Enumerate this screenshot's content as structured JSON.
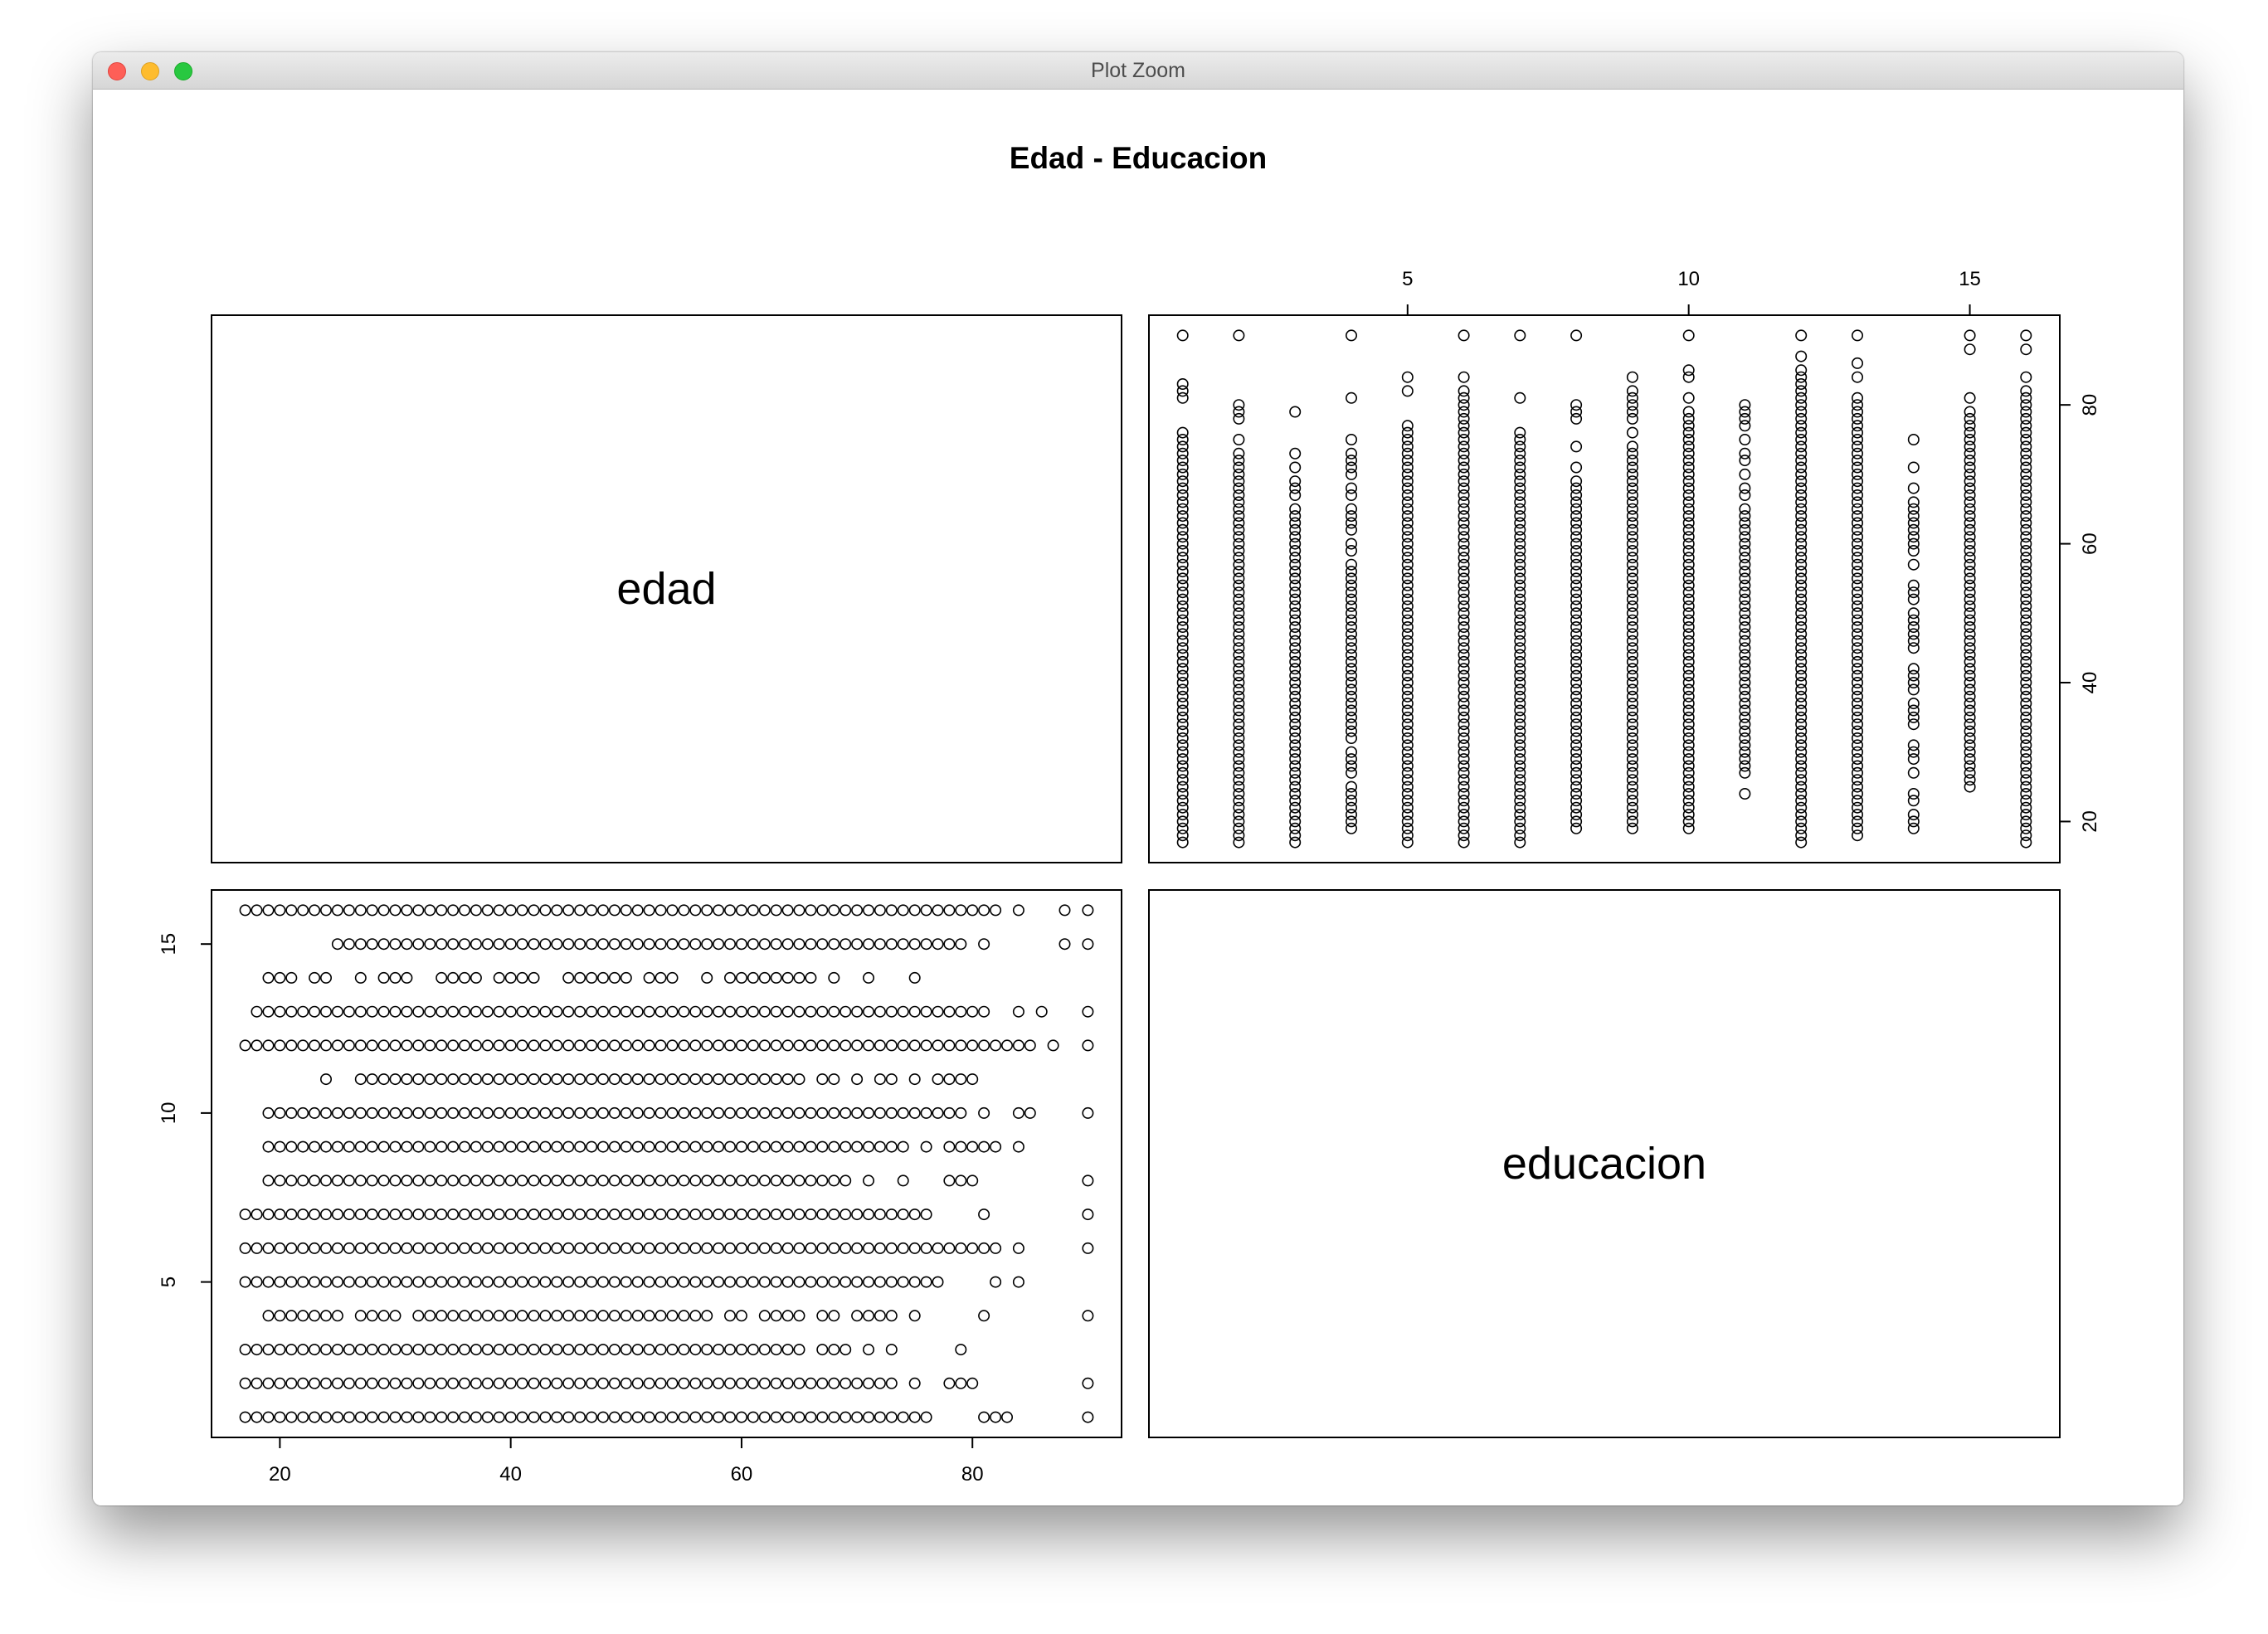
{
  "window": {
    "title": "Plot Zoom"
  },
  "colors": {
    "background": "#ffffff",
    "ink": "#000000"
  },
  "chart_data": {
    "type": "scatter",
    "title": "Edad - Educacion",
    "variables": [
      "edad",
      "educacion"
    ],
    "axes": {
      "edad": {
        "range": [
          17,
          90
        ],
        "ticks": [
          20,
          40,
          60,
          80
        ]
      },
      "educacion": {
        "range": [
          1,
          16
        ],
        "ticks": [
          5,
          10,
          15
        ]
      }
    },
    "layout": "pairs-matrix 2x2; top-right panel: x = educacion, y = edad; bottom-left panel: x = edad, y = educacion",
    "points_by_educacion": [
      {
        "educacion": 1,
        "edad_segments": [
          [
            17,
            76
          ]
        ],
        "edad_extra": [
          81,
          82,
          83,
          90
        ]
      },
      {
        "educacion": 2,
        "edad_segments": [
          [
            17,
            73
          ]
        ],
        "edad_extra": [
          75,
          78,
          79,
          80,
          90
        ]
      },
      {
        "educacion": 3,
        "edad_segments": [
          [
            17,
            65
          ]
        ],
        "edad_extra": [
          67,
          68,
          69,
          71,
          73,
          79
        ]
      },
      {
        "educacion": 4,
        "edad_segments": [
          [
            19,
            25
          ],
          [
            27,
            30
          ],
          [
            32,
            46
          ],
          [
            47,
            57
          ]
        ],
        "edad_extra": [
          59,
          60,
          62,
          63,
          64,
          65,
          67,
          68,
          70,
          71,
          72,
          73,
          75,
          81,
          90
        ]
      },
      {
        "educacion": 5,
        "edad_segments": [
          [
            17,
            77
          ]
        ],
        "edad_extra": [
          82,
          84
        ]
      },
      {
        "educacion": 6,
        "edad_segments": [
          [
            17,
            74
          ],
          [
            75,
            81
          ]
        ],
        "edad_extra": [
          82,
          84,
          90
        ]
      },
      {
        "educacion": 7,
        "edad_segments": [
          [
            17,
            76
          ]
        ],
        "edad_extra": [
          81,
          90
        ]
      },
      {
        "educacion": 8,
        "edad_segments": [
          [
            19,
            68
          ]
        ],
        "edad_extra": [
          69,
          71,
          74,
          78,
          79,
          80,
          90
        ]
      },
      {
        "educacion": 9,
        "edad_segments": [
          [
            19,
            74
          ]
        ],
        "edad_extra": [
          76,
          78,
          79,
          80,
          81,
          82,
          84
        ]
      },
      {
        "educacion": 10,
        "edad_segments": [
          [
            19,
            79
          ]
        ],
        "edad_extra": [
          81,
          84,
          85,
          90
        ]
      },
      {
        "educacion": 11,
        "edad_segments": [
          [
            27,
            62
          ]
        ],
        "edad_extra": [
          24,
          63,
          64,
          65,
          67,
          68,
          70,
          72,
          73,
          75,
          77,
          78,
          79,
          80
        ]
      },
      {
        "educacion": 12,
        "edad_segments": [
          [
            17,
            85
          ]
        ],
        "edad_extra": [
          87,
          90
        ]
      },
      {
        "educacion": 13,
        "edad_segments": [
          [
            20,
            81
          ]
        ],
        "edad_extra": [
          18,
          19,
          84,
          86,
          90
        ]
      },
      {
        "educacion": 14,
        "edad_segments": [
          [
            34,
            37
          ],
          [
            39,
            42
          ],
          [
            45,
            50
          ],
          [
            52,
            54
          ],
          [
            60,
            66
          ]
        ],
        "edad_extra": [
          19,
          20,
          21,
          23,
          24,
          27,
          29,
          30,
          31,
          57,
          59,
          61,
          64,
          68,
          71,
          75
        ]
      },
      {
        "educacion": 15,
        "edad_segments": [
          [
            25,
            78
          ]
        ],
        "edad_extra": [
          79,
          81,
          88,
          90
        ]
      },
      {
        "educacion": 16,
        "edad_segments": [
          [
            17,
            82
          ]
        ],
        "edad_extra": [
          84,
          88,
          90
        ]
      }
    ]
  }
}
